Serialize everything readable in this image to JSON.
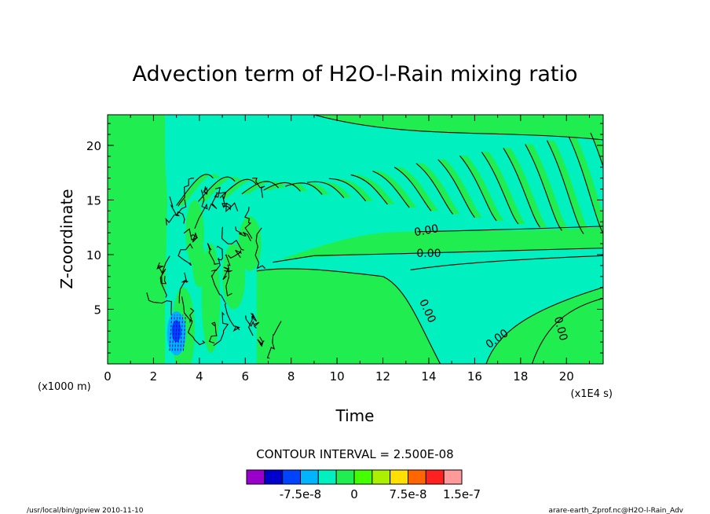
{
  "chart_data": {
    "type": "heatmap",
    "title": "Advection term of H2O-l-Rain mixing ratio",
    "xlabel": "Time",
    "ylabel": "Z-coordinate",
    "x_unit": "(x1E4 s)",
    "y_unit": "(x1000 m)",
    "xlim": [
      0,
      21.6
    ],
    "ylim": [
      0,
      22.8
    ],
    "x_ticks": [
      0,
      2,
      4,
      6,
      8,
      10,
      12,
      14,
      16,
      18,
      20
    ],
    "y_ticks": [
      5,
      10,
      15,
      20
    ],
    "x_tick_labels": [
      "0",
      "2",
      "4",
      "6",
      "8",
      "10",
      "12",
      "14",
      "16",
      "18",
      "20"
    ],
    "y_tick_labels": [
      "5",
      "10",
      "15",
      "20"
    ],
    "contour_interval_text": "CONTOUR INTERVAL = 2.500E-08",
    "contour_labels": [
      {
        "text": "0.00",
        "x": 13.9,
        "y": 12.1,
        "rot": 10
      },
      {
        "text": "0.00",
        "x": 14.0,
        "y": 10.0,
        "rot": 0
      },
      {
        "text": "0.00",
        "x": 13.9,
        "y": 4.8,
        "rot": -65
      },
      {
        "text": "0.00",
        "x": 17.0,
        "y": 2.2,
        "rot": 35
      },
      {
        "text": "0.00",
        "x": 19.7,
        "y": 3.2,
        "rot": -75
      }
    ],
    "colorbar": {
      "colors": [
        "#9900cc",
        "#0000cc",
        "#0044ff",
        "#00b4ff",
        "#00f0c0",
        "#20ee50",
        "#44ff00",
        "#aaf000",
        "#ffe000",
        "#ff6600",
        "#ff2020",
        "#ff9a9a"
      ],
      "labels": [
        {
          "text": "-7.5e-8",
          "value": -7.5e-08
        },
        {
          "text": "0",
          "value": 0
        },
        {
          "text": "7.5e-8",
          "value": 7.5e-08
        },
        {
          "text": "1.5e-7",
          "value": 1.5e-07
        }
      ],
      "min": -1.5e-07,
      "step": 2.5e-08
    },
    "footer_left": "/usr/local/bin/gpview  2010-11-10",
    "footer_right": "arare-earth_Zprof.nc@H2O-l-Rain_Adv"
  }
}
